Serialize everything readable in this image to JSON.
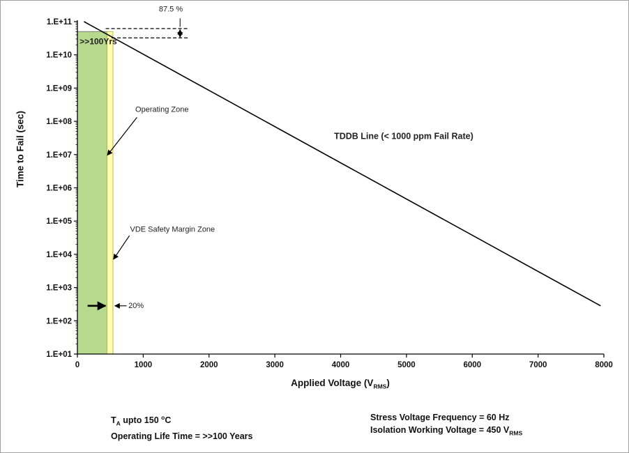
{
  "chart_data": {
    "type": "line",
    "title": "",
    "xlabel": "Applied Voltage (V_RMS)",
    "ylabel": "Time to Fail (sec)",
    "xlim": [
      0,
      8000
    ],
    "ylim_exp": [
      1,
      11
    ],
    "x_tick_values": [
      0,
      1000,
      2000,
      3000,
      4000,
      5000,
      6000,
      7000,
      8000
    ],
    "x_tick_labels": [
      "0",
      "1000",
      "2000",
      "3000",
      "4000",
      "5000",
      "6000",
      "7000",
      "8000"
    ],
    "y_tick_exponents": [
      1,
      2,
      3,
      4,
      5,
      6,
      7,
      8,
      9,
      10,
      11
    ],
    "y_tick_labels": [
      "1.E+01",
      "1.E+02",
      "1.E+03",
      "1.E+04",
      "1.E+05",
      "1.E+06",
      "1.E+07",
      "1.E+08",
      "1.E+09",
      "1.E+10",
      "1.E+11"
    ],
    "axis_titles": {
      "y": "Time to Fail (sec)",
      "x_pre": "Applied Voltage (V",
      "x_sub": "RMS",
      "x_post": ")"
    },
    "tddb_line": {
      "label": "TDDB Line (< 1000 ppm Fail Rate)",
      "x": [
        100,
        7950
      ],
      "y_exp": [
        11,
        2.45
      ],
      "color": "#000000"
    },
    "zones": [
      {
        "id": "operating",
        "label": "Operating  Zone",
        "x": [
          0,
          450
        ],
        "y_exp": [
          1,
          10.7
        ],
        "fill": "#b6d98e",
        "stroke": "#7b7b7b"
      },
      {
        "id": "vde",
        "label": "VDE Safety Margin Zone",
        "x": [
          450,
          540
        ],
        "y_exp": [
          1,
          10.7
        ],
        "fill": "#ffffb0",
        "stroke": "#b9b94d"
      }
    ],
    "dashed_lines": [
      {
        "x": [
          430,
          1700
        ],
        "y_exp": 10.79
      },
      {
        "x": [
          520,
          1700
        ],
        "y_exp": 10.51
      }
    ],
    "annotations": [
      {
        "id": "years",
        "text": ">>100Yrs",
        "v": 35,
        "e": 10.32,
        "bold": true,
        "size": 12
      },
      {
        "id": "pct875",
        "text": "87.5 %",
        "v": 1420,
        "e": 11.3,
        "size": 11,
        "anchor": "middle"
      },
      {
        "id": "operating-zone",
        "text": "Operating  Zone",
        "v": 880,
        "e": 8.28,
        "size": 11
      },
      {
        "id": "tddb-line-label",
        "text": "TDDB Line (< 1000 ppm Fail Rate)",
        "v": 3900,
        "e": 7.47,
        "bold": true,
        "size": 12.5
      },
      {
        "id": "vde-zone",
        "text": "VDE Safety Margin Zone",
        "v": 800,
        "e": 4.68,
        "size": 11
      },
      {
        "id": "pct20",
        "text": "20%",
        "v": 775,
        "e": 2.38,
        "size": 11
      }
    ],
    "arrows": [
      {
        "name": "operating-zone-pointer",
        "from": [
          905,
          8.12
        ],
        "to": [
          455,
          6.98
        ],
        "w": 1.2
      },
      {
        "name": "vde-zone-pointer",
        "from": [
          790,
          4.56
        ],
        "to": [
          548,
          3.85
        ],
        "w": 1.2
      },
      {
        "name": "margin-width-arrow-right",
        "from": [
          155,
          2.45
        ],
        "to": [
          428,
          2.45
        ],
        "w": 2.6,
        "big": true
      },
      {
        "name": "margin-width-arrow-left",
        "from": [
          748,
          2.45
        ],
        "to": [
          568,
          2.45
        ],
        "w": 1.2
      },
      {
        "name": "pct875-leader",
        "from": [
          1560,
          11.1
        ],
        "to": [
          1560,
          10.84
        ],
        "w": 1,
        "head": false
      },
      {
        "name": "pct875-dim-up",
        "from": [
          1560,
          10.62
        ],
        "to": [
          1560,
          10.76
        ],
        "w": 1
      },
      {
        "name": "pct875-dim-down",
        "from": [
          1560,
          10.67
        ],
        "to": [
          1560,
          10.53
        ],
        "w": 1
      }
    ]
  },
  "notes": {
    "left": [
      {
        "pre": "T",
        "sub": "A",
        "mid": "  upto 150 ",
        "sup": "o",
        "post": "C"
      },
      {
        "pre": "Operating Life Time = >>100 Years"
      }
    ],
    "right": [
      {
        "pre": "Stress Voltage Frequency = 60 Hz"
      },
      {
        "pre": "Isolation Working Voltage = 450 V",
        "sub": "RMS"
      }
    ]
  }
}
